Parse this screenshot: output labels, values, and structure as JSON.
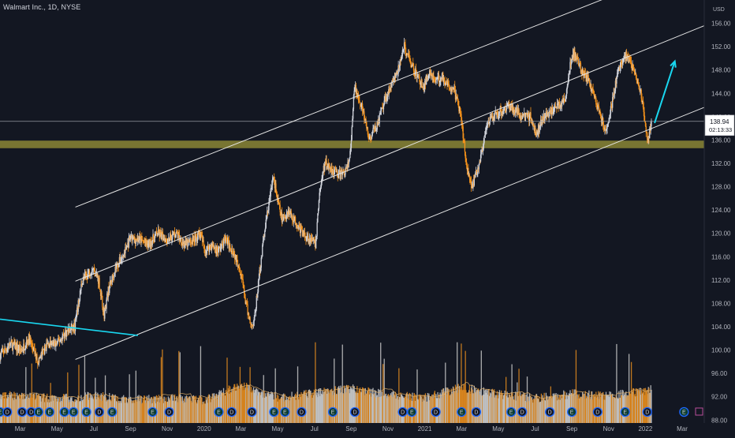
{
  "header": {
    "symbol_title": "Walmart Inc., 1D, NYSE",
    "currency_label": "USD"
  },
  "chart_data": {
    "type": "candlestick",
    "x_axis": {
      "labels": [
        {
          "label": "Mar",
          "t": 0
        },
        {
          "label": "May",
          "t": 2
        },
        {
          "label": "Jul",
          "t": 4
        },
        {
          "label": "Sep",
          "t": 6
        },
        {
          "label": "Nov",
          "t": 8
        },
        {
          "label": "2020",
          "t": 10
        },
        {
          "label": "Mar",
          "t": 12
        },
        {
          "label": "May",
          "t": 14
        },
        {
          "label": "Jul",
          "t": 16
        },
        {
          "label": "Sep",
          "t": 18
        },
        {
          "label": "Nov",
          "t": 20
        },
        {
          "label": "2021",
          "t": 22
        },
        {
          "label": "Mar",
          "t": 24
        },
        {
          "label": "May",
          "t": 26
        },
        {
          "label": "Jul",
          "t": 28
        },
        {
          "label": "Sep",
          "t": 30
        },
        {
          "label": "Nov",
          "t": 32
        },
        {
          "label": "2022",
          "t": 34
        },
        {
          "label": "Mar",
          "t": 36
        }
      ],
      "range": [
        -1.1,
        37.2
      ]
    },
    "y_axis": {
      "ticks": [
        88,
        92,
        96,
        100,
        104,
        108,
        112,
        116,
        120,
        124,
        128,
        132,
        136,
        140,
        144,
        148,
        152,
        156
      ],
      "range": [
        87.5,
        160
      ]
    },
    "last_price": "138.94",
    "countdown": "02:13:33",
    "price_anchors": [
      [
        -1.1,
        99
      ],
      [
        -0.5,
        101
      ],
      [
        0.1,
        100
      ],
      [
        0.5,
        102
      ],
      [
        1.0,
        98
      ],
      [
        1.5,
        101
      ],
      [
        2.0,
        101
      ],
      [
        2.5,
        103
      ],
      [
        3.0,
        104
      ],
      [
        3.2,
        108
      ],
      [
        3.4,
        112
      ],
      [
        3.7,
        113
      ],
      [
        4.0,
        114
      ],
      [
        4.3,
        112
      ],
      [
        4.5,
        108
      ],
      [
        4.6,
        106
      ],
      [
        4.8,
        110
      ],
      [
        5.2,
        114
      ],
      [
        5.6,
        116
      ],
      [
        6.0,
        119
      ],
      [
        6.5,
        119
      ],
      [
        7.0,
        118
      ],
      [
        7.5,
        120
      ],
      [
        8.0,
        119
      ],
      [
        8.5,
        120
      ],
      [
        9.0,
        118
      ],
      [
        9.5,
        119
      ],
      [
        9.8,
        120
      ],
      [
        10.1,
        117
      ],
      [
        10.4,
        118
      ],
      [
        10.8,
        117
      ],
      [
        11.2,
        119
      ],
      [
        11.6,
        117
      ],
      [
        12.0,
        114
      ],
      [
        12.3,
        108
      ],
      [
        12.6,
        104
      ],
      [
        12.8,
        106
      ],
      [
        13.0,
        112
      ],
      [
        13.3,
        120
      ],
      [
        13.6,
        126
      ],
      [
        13.8,
        130
      ],
      [
        14.0,
        126
      ],
      [
        14.3,
        122
      ],
      [
        14.6,
        124
      ],
      [
        15.0,
        122
      ],
      [
        15.4,
        120
      ],
      [
        15.8,
        119
      ],
      [
        16.1,
        118
      ],
      [
        16.3,
        127
      ],
      [
        16.6,
        132
      ],
      [
        17.0,
        131
      ],
      [
        17.4,
        130
      ],
      [
        17.8,
        131
      ],
      [
        18.0,
        134
      ],
      [
        18.2,
        145
      ],
      [
        18.5,
        143
      ],
      [
        18.8,
        139
      ],
      [
        19.0,
        136
      ],
      [
        19.5,
        139
      ],
      [
        20.0,
        144
      ],
      [
        20.3,
        146
      ],
      [
        20.6,
        148
      ],
      [
        20.9,
        152
      ],
      [
        21.2,
        150
      ],
      [
        21.6,
        147
      ],
      [
        22.0,
        145
      ],
      [
        22.3,
        148
      ],
      [
        22.6,
        146
      ],
      [
        23.0,
        147
      ],
      [
        23.3,
        145
      ],
      [
        23.6,
        145
      ],
      [
        24.0,
        140
      ],
      [
        24.3,
        132
      ],
      [
        24.6,
        128
      ],
      [
        24.9,
        131
      ],
      [
        25.2,
        135
      ],
      [
        25.5,
        139
      ],
      [
        25.8,
        140
      ],
      [
        26.2,
        141
      ],
      [
        26.6,
        142
      ],
      [
        27.0,
        141
      ],
      [
        27.4,
        140
      ],
      [
        27.8,
        140
      ],
      [
        28.1,
        137
      ],
      [
        28.5,
        140
      ],
      [
        28.9,
        141
      ],
      [
        29.3,
        142
      ],
      [
        29.7,
        143
      ],
      [
        29.9,
        148
      ],
      [
        30.1,
        151
      ],
      [
        30.4,
        149
      ],
      [
        30.7,
        147
      ],
      [
        31.0,
        146
      ],
      [
        31.3,
        143
      ],
      [
        31.6,
        140
      ],
      [
        31.9,
        137
      ],
      [
        32.2,
        142
      ],
      [
        32.5,
        147
      ],
      [
        32.8,
        150
      ],
      [
        33.1,
        150
      ],
      [
        33.4,
        148
      ],
      [
        33.6,
        146
      ],
      [
        33.8,
        144
      ],
      [
        34.0,
        139
      ],
      [
        34.15,
        135.5
      ],
      [
        34.35,
        138.94
      ]
    ],
    "volume_anchors": [
      [
        -1.1,
        91.2
      ],
      [
        0,
        91.5
      ],
      [
        2,
        90.8
      ],
      [
        4,
        91.4
      ],
      [
        6,
        90.7
      ],
      [
        8,
        90.9
      ],
      [
        10,
        90.6
      ],
      [
        12,
        93.2
      ],
      [
        13,
        92.0
      ],
      [
        14,
        91.0
      ],
      [
        16,
        91.8
      ],
      [
        18,
        92.6
      ],
      [
        20,
        91.5
      ],
      [
        22,
        91.0
      ],
      [
        24,
        92.8
      ],
      [
        26,
        91.6
      ],
      [
        28,
        90.9
      ],
      [
        30,
        91.7
      ],
      [
        32,
        91.3
      ],
      [
        34,
        92.3
      ],
      [
        34.35,
        92.5
      ]
    ],
    "channel_lines": [
      {
        "name": "channel-upper",
        "from": [
          3.0,
          124.5
        ],
        "to": [
          32.0,
          160.5
        ]
      },
      {
        "name": "channel-middle",
        "from": [
          3.0,
          111.8
        ],
        "to": [
          37.2,
          155.6
        ]
      },
      {
        "name": "channel-lower",
        "from": [
          3.0,
          98.4
        ],
        "to": [
          37.2,
          141.6
        ]
      }
    ],
    "trend_line": {
      "from": [
        -1.1,
        105.3
      ],
      "to": [
        6.4,
        102.5
      ]
    },
    "horizontal_line": {
      "price": 139.2
    },
    "support_zone": {
      "from": 134.6,
      "to": 135.9
    },
    "projection_arrow": {
      "from": [
        34.5,
        138.9
      ],
      "to": [
        35.6,
        149.5
      ]
    },
    "colors": {
      "background": "#131722",
      "candle_up": "#d1d4dc",
      "candle_down": "#f7931a",
      "volume_up": "#c8c8c8",
      "volume_down": "#e18a1e",
      "channel": "#e6e6e6",
      "trend_line": "#19d7f0",
      "support_zone": "#7d7a34",
      "event_marker": "#1e66ff",
      "projection_arrow": "#19d7f0",
      "axis_text": "#b2b5be",
      "price_label": "#d1d4dc"
    },
    "events": [
      {
        "t": -1.1,
        "type": "earnings",
        "glyph": "E"
      },
      {
        "t": -0.7,
        "type": "dividend",
        "glyph": "D"
      },
      {
        "t": 0.1,
        "type": "dividend",
        "glyph": "D"
      },
      {
        "t": 0.6,
        "type": "dividend",
        "glyph": "D"
      },
      {
        "t": 1.0,
        "type": "earnings",
        "glyph": "E"
      },
      {
        "t": 1.6,
        "type": "earnings",
        "glyph": "E"
      },
      {
        "t": 2.4,
        "type": "earnings",
        "glyph": "E"
      },
      {
        "t": 2.9,
        "type": "earnings",
        "glyph": "E"
      },
      {
        "t": 3.6,
        "type": "earnings",
        "glyph": "E"
      },
      {
        "t": 4.3,
        "type": "dividend",
        "glyph": "D"
      },
      {
        "t": 5.0,
        "type": "earnings",
        "glyph": "E"
      },
      {
        "t": 7.2,
        "type": "earnings",
        "glyph": "E"
      },
      {
        "t": 8.1,
        "type": "dividend",
        "glyph": "D"
      },
      {
        "t": 10.8,
        "type": "earnings",
        "glyph": "E"
      },
      {
        "t": 11.5,
        "type": "dividend",
        "glyph": "D"
      },
      {
        "t": 12.6,
        "type": "dividend",
        "glyph": "D"
      },
      {
        "t": 13.8,
        "type": "earnings",
        "glyph": "E"
      },
      {
        "t": 14.4,
        "type": "earnings",
        "glyph": "E"
      },
      {
        "t": 15.3,
        "type": "dividend",
        "glyph": "D"
      },
      {
        "t": 17.0,
        "type": "earnings",
        "glyph": "E"
      },
      {
        "t": 18.2,
        "type": "dividend",
        "glyph": "D"
      },
      {
        "t": 20.8,
        "type": "dividend",
        "glyph": "D"
      },
      {
        "t": 21.3,
        "type": "earnings",
        "glyph": "E"
      },
      {
        "t": 22.6,
        "type": "dividend",
        "glyph": "D"
      },
      {
        "t": 24.0,
        "type": "earnings",
        "glyph": "E"
      },
      {
        "t": 24.8,
        "type": "dividend",
        "glyph": "D"
      },
      {
        "t": 26.7,
        "type": "earnings",
        "glyph": "E"
      },
      {
        "t": 27.3,
        "type": "dividend",
        "glyph": "D"
      },
      {
        "t": 28.8,
        "type": "dividend",
        "glyph": "D"
      },
      {
        "t": 30.0,
        "type": "earnings",
        "glyph": "E"
      },
      {
        "t": 31.4,
        "type": "dividend",
        "glyph": "D"
      },
      {
        "t": 32.9,
        "type": "earnings",
        "glyph": "E"
      },
      {
        "t": 34.1,
        "type": "dividend",
        "glyph": "D"
      },
      {
        "t": 36.1,
        "type": "earnings",
        "glyph": "E"
      }
    ]
  }
}
